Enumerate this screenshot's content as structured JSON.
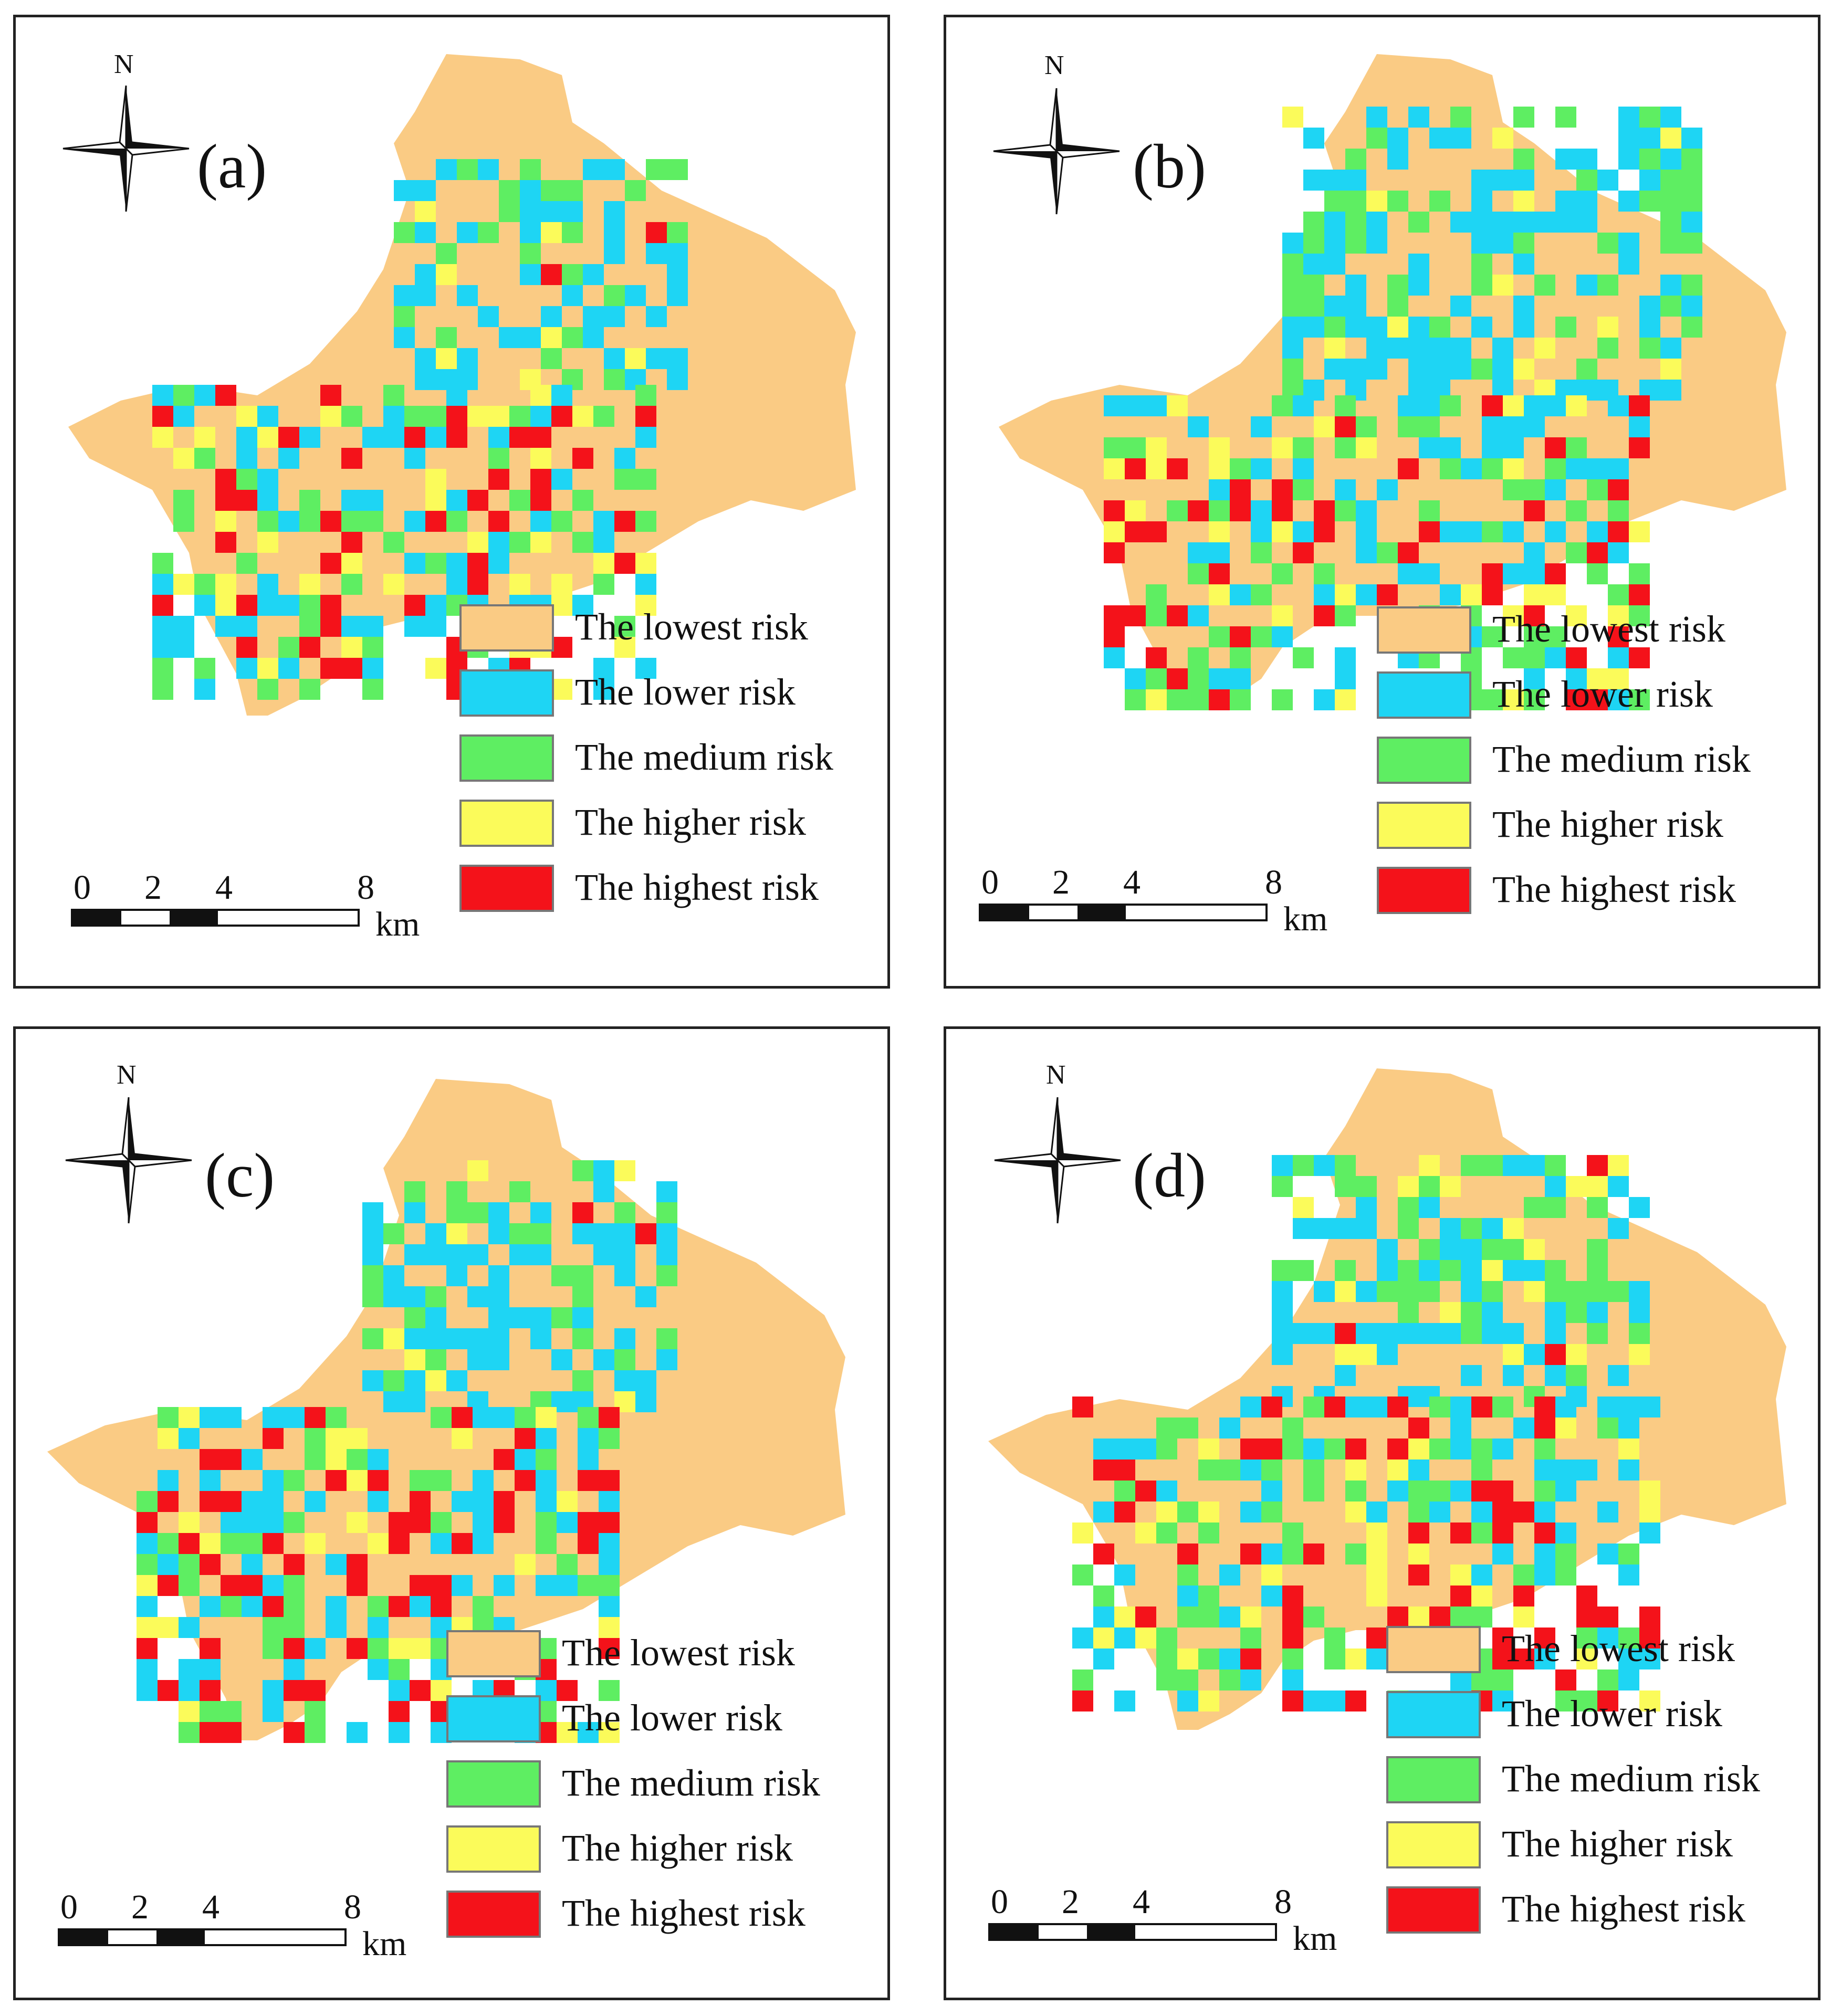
{
  "colors": {
    "lowest": "#FACB84",
    "lower": "#1ED5F4",
    "medium": "#5EEE62",
    "higher": "#FBFB5A",
    "highest": "#F4121A"
  },
  "north_label": "N",
  "legend": [
    {
      "key": "lowest",
      "label": "The lowest risk"
    },
    {
      "key": "lower",
      "label": "The lower risk"
    },
    {
      "key": "medium",
      "label": "The medium risk"
    },
    {
      "key": "higher",
      "label": "The higher risk"
    },
    {
      "key": "highest",
      "label": "The highest risk"
    }
  ],
  "scale": {
    "ticks": [
      "0",
      "2",
      "4",
      "8"
    ],
    "unit": "km"
  },
  "panels": [
    {
      "id": "a",
      "label": "(a)"
    },
    {
      "id": "b",
      "label": "(b)"
    },
    {
      "id": "c",
      "label": "(c)"
    },
    {
      "id": "d",
      "label": "(d)"
    }
  ]
}
